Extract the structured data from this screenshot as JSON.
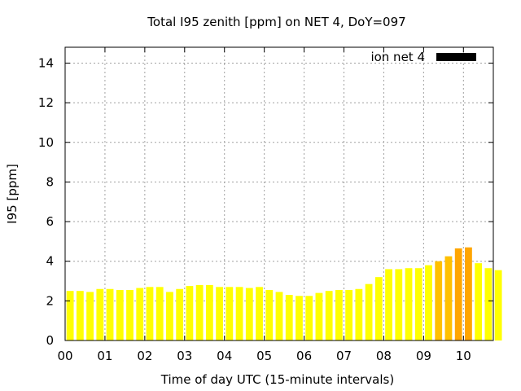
{
  "chart_data": {
    "type": "bar",
    "title": "Total I95 zenith [ppm] on NET 4, DoY=097",
    "xlabel": "Time of day UTC (15-minute intervals)",
    "ylabel": "I95 [ppm]",
    "xlim": [
      0,
      10.75
    ],
    "ylim": [
      0,
      14.8
    ],
    "yticks": [
      0,
      2,
      4,
      6,
      8,
      10,
      12,
      14
    ],
    "ytick_labels": [
      "0",
      "2",
      "4",
      "6",
      "8",
      "10",
      "12",
      "14"
    ],
    "xticks": [
      0,
      1,
      2,
      3,
      4,
      5,
      6,
      7,
      8,
      9,
      10
    ],
    "xtick_labels": [
      "00",
      "01",
      "02",
      "03",
      "04",
      "05",
      "06",
      "07",
      "08",
      "09",
      "10"
    ],
    "bar_step_hours": 0.25,
    "grid": true,
    "legend": {
      "placement": "top-right",
      "label": "ion net 4",
      "swatch_color": "#000000"
    },
    "colors": {
      "low": "#ffff00",
      "mid": "#ffc000",
      "high": "#ffa500"
    },
    "series": [
      {
        "values": [
          2.5,
          2.5,
          2.45,
          2.6,
          2.6,
          2.55,
          2.55,
          2.65,
          2.7,
          2.7,
          2.45,
          2.6,
          2.75,
          2.8,
          2.8,
          2.7,
          2.7,
          2.7,
          2.65,
          2.7,
          2.55,
          2.45,
          2.3,
          2.25,
          2.25,
          2.4,
          2.5,
          2.55,
          2.55,
          2.6,
          2.85,
          3.2,
          3.6,
          3.6,
          3.65,
          3.65,
          3.8,
          4.0,
          4.25,
          4.65,
          4.7,
          3.9,
          3.65,
          3.55
        ],
        "levels": [
          "low",
          "low",
          "low",
          "low",
          "low",
          "low",
          "low",
          "low",
          "low",
          "low",
          "low",
          "low",
          "low",
          "low",
          "low",
          "low",
          "low",
          "low",
          "low",
          "low",
          "low",
          "low",
          "low",
          "low",
          "low",
          "low",
          "low",
          "low",
          "low",
          "low",
          "low",
          "low",
          "low",
          "low",
          "low",
          "low",
          "low",
          "mid",
          "mid",
          "high",
          "high",
          "low",
          "low",
          "low"
        ]
      }
    ]
  }
}
